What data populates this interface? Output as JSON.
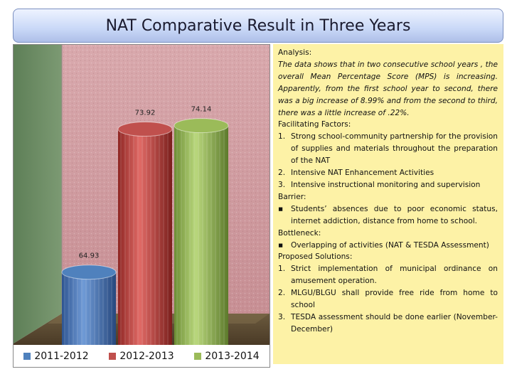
{
  "title": "NAT Comparative Result in Three Years",
  "chart_data": {
    "type": "bar",
    "categories": [
      "2011-2012",
      "2012-2013",
      "2013-2014"
    ],
    "values": [
      64.93,
      73.92,
      74.14
    ],
    "data_labels": [
      "64.93",
      "73.92",
      "74.14"
    ],
    "legend": [
      "2011-2012",
      "2012-2013",
      "2013-2014"
    ],
    "legend_position": "bottom",
    "colors": [
      "#4f81bd",
      "#c0504d",
      "#9bbb59"
    ],
    "style": "3d-cylinder",
    "ylim": [
      60,
      76
    ],
    "grid": false
  },
  "analysis": {
    "heading": "Analysis:",
    "intro": "The data shows that in two consecutive school years , the overall Mean Percentage Score (MPS) is increasing. Apparently, from the first school year to second, there was a big increase of 8.99% and from the second to third, there was a little increase of .22%.",
    "facilitating_heading": "Facilitating Factors:",
    "facilitating": [
      {
        "num": "1.",
        "text": "Strong school-community partnership for the provision of supplies and materials throughout the preparation of the NAT"
      },
      {
        "num": "2.",
        "text": "Intensive NAT Enhancement Activities"
      },
      {
        "num": "3.",
        "text": "Intensive instructional monitoring and supervision"
      }
    ],
    "barrier_heading": "Barrier:",
    "barriers": [
      {
        "num": "▪",
        "text": "Students’ absences due to poor economic status, internet addiction, distance from home to school."
      }
    ],
    "bottleneck_heading": "Bottleneck:",
    "bottlenecks": [
      {
        "num": "▪",
        "text": "Overlapping of activities (NAT & TESDA Assessment)"
      }
    ],
    "solutions_heading": "Proposed Solutions:",
    "solutions": [
      {
        "num": "1.",
        "text": "Strict implementation of municipal ordinance on amusement operation."
      },
      {
        "num": "2.",
        "text": "MLGU/BLGU shall provide free ride from home to school"
      },
      {
        "num": "3.",
        "text": "TESDA assessment should be done earlier (November-December)"
      }
    ]
  }
}
